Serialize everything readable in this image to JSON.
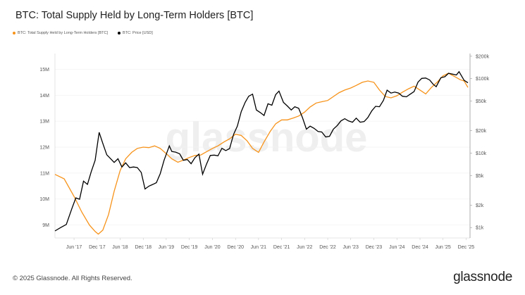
{
  "chart_data": {
    "type": "line",
    "title": "BTC: Total Supply Held by Long-Term Holders [BTC]",
    "watermark": "glassnode",
    "x_ticks": [
      "Jun '17",
      "Dec '17",
      "Jun '18",
      "Dec '18",
      "Jun '19",
      "Dec '19",
      "Jun '20",
      "Dec '20",
      "Jun '21",
      "Dec '21",
      "Jun '22",
      "Dec '22",
      "Jun '23",
      "Dec '23",
      "Jun '24",
      "Dec '24",
      "Jun '25",
      "Dec '25"
    ],
    "y_left_ticks": [
      "9M",
      "10M",
      "11M",
      "12M",
      "13M",
      "14M",
      "15M"
    ],
    "y_left_range": [
      8.5,
      15.5
    ],
    "y_right_ticks": [
      "$1k",
      "$2k",
      "$5k",
      "$10k",
      "$20k",
      "$50k",
      "$100k",
      "$200k"
    ],
    "y_right_log_range": [
      2.86,
      5.3
    ],
    "legend_placement": "top-left",
    "colors": {
      "lth_supply": "#f7931a",
      "price": "#000000",
      "grid": "#eeeeee",
      "axis": "#dddddd"
    },
    "series": [
      {
        "name": "BTC: Total Supply Held by Long-Term Holders [BTC]",
        "axis": "left",
        "x": [
          "2017-01-01",
          "2017-03-15",
          "2017-06-01",
          "2017-08-01",
          "2017-10-01",
          "2017-11-15",
          "2017-12-10",
          "2018-01-15",
          "2018-03-01",
          "2018-04-15",
          "2018-06-01",
          "2018-07-15",
          "2018-09-01",
          "2018-10-15",
          "2018-12-01",
          "2019-01-15",
          "2019-03-01",
          "2019-04-15",
          "2019-06-01",
          "2019-07-15",
          "2019-09-01",
          "2019-10-15",
          "2019-12-01",
          "2020-01-15",
          "2020-03-01",
          "2020-04-15",
          "2020-06-01",
          "2020-07-15",
          "2020-09-01",
          "2020-10-15",
          "2020-12-01",
          "2021-01-15",
          "2021-03-01",
          "2021-04-15",
          "2021-06-01",
          "2021-07-15",
          "2021-09-01",
          "2021-10-15",
          "2021-12-01",
          "2022-01-15",
          "2022-03-01",
          "2022-04-15",
          "2022-06-01",
          "2022-07-15",
          "2022-09-01",
          "2022-10-15",
          "2022-12-01",
          "2023-01-15",
          "2023-03-01",
          "2023-04-15",
          "2023-06-01",
          "2023-07-15",
          "2023-09-01",
          "2023-10-15",
          "2023-12-01",
          "2024-01-15",
          "2024-03-01",
          "2024-04-15",
          "2024-06-01",
          "2024-07-15",
          "2024-09-01",
          "2024-10-15",
          "2024-12-01",
          "2025-01-15",
          "2025-03-01",
          "2025-04-15",
          "2025-06-01",
          "2025-07-15",
          "2025-09-01",
          "2025-10-15",
          "2025-11-15",
          "2025-12-15"
        ],
        "values": [
          10.95,
          10.78,
          10.1,
          9.5,
          9.0,
          8.75,
          8.65,
          8.8,
          9.4,
          10.3,
          11.1,
          11.55,
          11.8,
          11.95,
          12.0,
          11.98,
          12.05,
          11.95,
          11.75,
          11.55,
          11.42,
          11.5,
          11.6,
          11.68,
          11.7,
          11.82,
          11.95,
          12.05,
          12.2,
          12.32,
          12.5,
          12.45,
          12.25,
          11.95,
          11.8,
          12.2,
          12.6,
          12.9,
          13.05,
          13.05,
          13.12,
          13.2,
          13.35,
          13.55,
          13.7,
          13.75,
          13.8,
          13.95,
          14.1,
          14.2,
          14.28,
          14.38,
          14.5,
          14.55,
          14.5,
          14.2,
          13.95,
          13.9,
          13.98,
          14.12,
          14.25,
          14.35,
          14.2,
          14.05,
          14.3,
          14.5,
          14.75,
          14.85,
          14.72,
          14.6,
          14.55,
          14.3
        ]
      },
      {
        "name": "BTC: Price [USD]",
        "axis": "right",
        "x": [
          "2017-01-01",
          "2017-02-15",
          "2017-04-01",
          "2017-05-15",
          "2017-06-15",
          "2017-07-15",
          "2017-08-15",
          "2017-09-15",
          "2017-10-15",
          "2017-11-15",
          "2017-12-17",
          "2018-01-15",
          "2018-02-15",
          "2018-03-15",
          "2018-04-15",
          "2018-05-15",
          "2018-06-15",
          "2018-07-15",
          "2018-08-15",
          "2018-09-15",
          "2018-10-15",
          "2018-11-15",
          "2018-12-15",
          "2019-01-15",
          "2019-02-15",
          "2019-03-15",
          "2019-04-15",
          "2019-05-15",
          "2019-06-26",
          "2019-07-15",
          "2019-08-15",
          "2019-09-15",
          "2019-10-15",
          "2019-11-15",
          "2019-12-15",
          "2020-01-15",
          "2020-02-15",
          "2020-03-15",
          "2020-04-15",
          "2020-05-15",
          "2020-06-15",
          "2020-07-15",
          "2020-08-15",
          "2020-09-15",
          "2020-10-15",
          "2020-11-15",
          "2020-12-15",
          "2021-01-15",
          "2021-02-15",
          "2021-03-15",
          "2021-04-15",
          "2021-05-15",
          "2021-06-15",
          "2021-07-15",
          "2021-08-15",
          "2021-09-15",
          "2021-10-15",
          "2021-11-10",
          "2021-12-15",
          "2022-01-15",
          "2022-02-15",
          "2022-03-15",
          "2022-04-15",
          "2022-05-15",
          "2022-06-15",
          "2022-07-15",
          "2022-08-15",
          "2022-09-15",
          "2022-10-15",
          "2022-11-15",
          "2022-12-15",
          "2023-01-15",
          "2023-02-15",
          "2023-03-15",
          "2023-04-15",
          "2023-05-15",
          "2023-06-15",
          "2023-07-15",
          "2023-08-15",
          "2023-09-15",
          "2023-10-15",
          "2023-11-15",
          "2023-12-15",
          "2024-01-15",
          "2024-02-15",
          "2024-03-15",
          "2024-04-15",
          "2024-05-15",
          "2024-06-15",
          "2024-07-15",
          "2024-08-15",
          "2024-09-15",
          "2024-10-15",
          "2024-11-15",
          "2024-12-15",
          "2025-01-15",
          "2025-02-15",
          "2025-03-15",
          "2025-04-08",
          "2025-05-15",
          "2025-06-15",
          "2025-07-15",
          "2025-08-15",
          "2025-09-15",
          "2025-10-06",
          "2025-11-15",
          "2025-12-15"
        ],
        "values": [
          900,
          1000,
          1100,
          1800,
          2500,
          2400,
          4200,
          3800,
          5600,
          8000,
          19000,
          13500,
          9500,
          8500,
          7500,
          8400,
          6500,
          7400,
          6400,
          6500,
          6400,
          5500,
          3300,
          3600,
          3800,
          4000,
          5300,
          8000,
          12500,
          10500,
          10300,
          9800,
          8000,
          8200,
          7200,
          8700,
          9700,
          5200,
          7100,
          9300,
          9400,
          9200,
          11600,
          10800,
          11500,
          17800,
          23000,
          36000,
          48000,
          58000,
          62000,
          38000,
          35000,
          32000,
          46000,
          44000,
          61000,
          68000,
          48000,
          43000,
          38000,
          42000,
          40000,
          30000,
          21000,
          23000,
          21500,
          19500,
          19200,
          16500,
          16800,
          21000,
          23500,
          27000,
          29000,
          27000,
          26000,
          29500,
          26000,
          26500,
          30000,
          37000,
          42500,
          42000,
          51000,
          70000,
          64000,
          66000,
          64000,
          58000,
          57000,
          62000,
          67000,
          90000,
          101000,
          102000,
          96000,
          84000,
          78000,
          103000,
          106000,
          118000,
          115000,
          112000,
          124000,
          95000,
          88000
        ]
      }
    ]
  },
  "footer": {
    "copyright": "© 2025 Glassnode. All Rights Reserved.",
    "logo": "glassnode"
  }
}
